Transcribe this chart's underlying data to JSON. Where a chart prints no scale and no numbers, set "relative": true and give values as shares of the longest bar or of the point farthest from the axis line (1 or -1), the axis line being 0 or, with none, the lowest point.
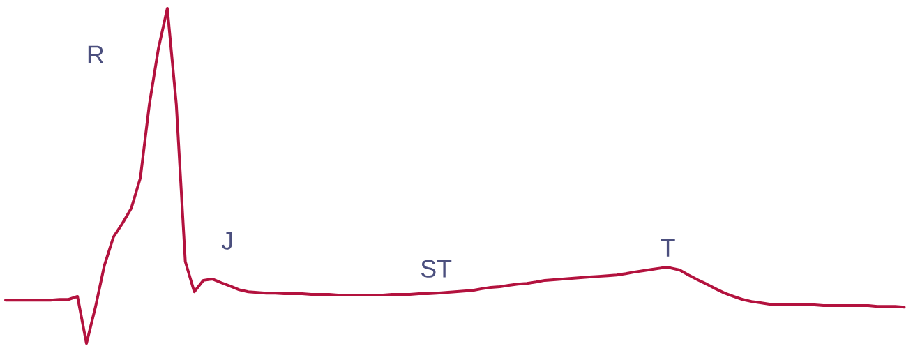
{
  "chart_data": {
    "type": "line",
    "relative": true,
    "color": "#b3123e",
    "categories": [
      null,
      null,
      null,
      null,
      null,
      null,
      null,
      null,
      null,
      null,
      null,
      null,
      null,
      null,
      null,
      null,
      null,
      null,
      null,
      null,
      null,
      null,
      null,
      null,
      null,
      null,
      null,
      null,
      null,
      null,
      null,
      null,
      null,
      null,
      null,
      null,
      null,
      null,
      null,
      null,
      null,
      null,
      null,
      null,
      null,
      null,
      null,
      null,
      null,
      null,
      null,
      null,
      null,
      null,
      null,
      null,
      null,
      null,
      null,
      null,
      null,
      null,
      null,
      null,
      null,
      null,
      null,
      null,
      null,
      null,
      null,
      null,
      null,
      null,
      null,
      null,
      null,
      null,
      null,
      null,
      null,
      null,
      null,
      null,
      null,
      null,
      null,
      null,
      null,
      null,
      null,
      null,
      null,
      null,
      null,
      null,
      null,
      null,
      null,
      null,
      null
    ],
    "values": [
      0.129,
      0.129,
      0.129,
      0.129,
      0.129,
      0.129,
      0.131,
      0.131,
      0.14,
      0,
      0.108,
      0.233,
      0.317,
      0.358,
      0.404,
      0.494,
      0.713,
      0.879,
      1,
      0.713,
      0.244,
      0.154,
      0.188,
      0.192,
      0.181,
      0.171,
      0.16,
      0.154,
      0.152,
      0.15,
      0.15,
      0.148,
      0.148,
      0.148,
      0.146,
      0.146,
      0.146,
      0.144,
      0.144,
      0.144,
      0.144,
      0.144,
      0.144,
      0.146,
      0.146,
      0.146,
      0.148,
      0.148,
      0.15,
      0.152,
      0.154,
      0.156,
      0.158,
      0.163,
      0.167,
      0.169,
      0.173,
      0.177,
      0.179,
      0.183,
      0.188,
      0.19,
      0.192,
      0.194,
      0.196,
      0.198,
      0.2,
      0.202,
      0.204,
      0.208,
      0.213,
      0.217,
      0.221,
      0.225,
      0.225,
      0.219,
      0.204,
      0.19,
      0.177,
      0.163,
      0.15,
      0.14,
      0.131,
      0.125,
      0.121,
      0.117,
      0.117,
      0.115,
      0.115,
      0.115,
      0.115,
      0.113,
      0.113,
      0.113,
      0.113,
      0.113,
      0.113,
      0.11,
      0.11,
      0.11,
      0.108
    ],
    "annotations": [
      "R",
      "J",
      "ST",
      "T"
    ]
  }
}
